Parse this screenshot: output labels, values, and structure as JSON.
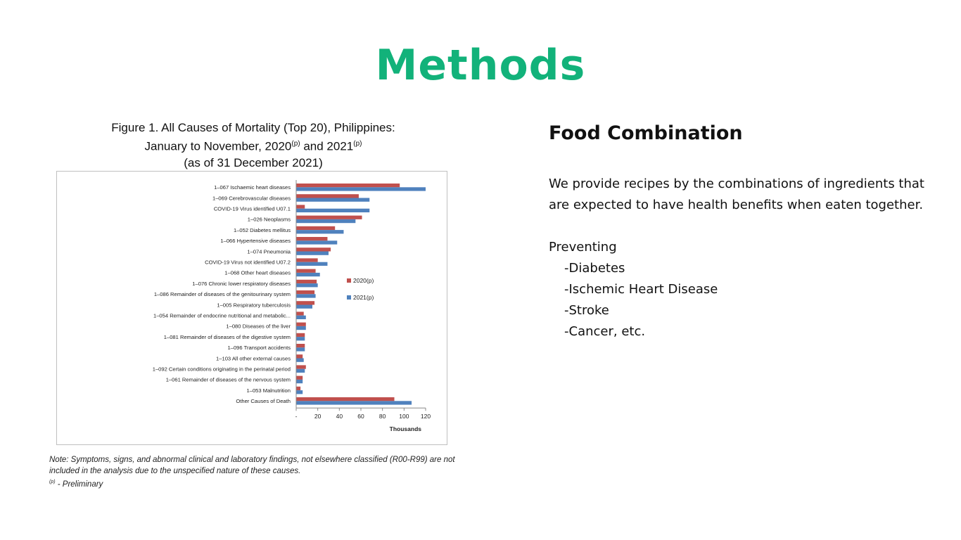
{
  "slide": {
    "title": "Methods",
    "title_color": "#12b27a"
  },
  "figure": {
    "title_line1": "Figure 1.  All Causes of Mortality (Top 20), Philippines:",
    "title_line2_a": "January to November, 2020",
    "title_sup_a": "(p)",
    "title_line2_b": " and 2021",
    "title_sup_b": "(p)",
    "title_line3": "(as of 31 December 2021)",
    "note_line1": "Note: Symptoms, signs, and abnormal clinical and laboratory findings, not elsewhere classified (R00-R99) are not",
    "note_line2": "included in the analysis due to the unspecified nature of these causes.",
    "note_sup": "(p)",
    "note_line3": " - Preliminary"
  },
  "chart_data": {
    "type": "bar",
    "orientation": "horizontal",
    "categories": [
      "1–067 Ischaemic heart diseases",
      "1–069 Cerebrovascular diseases",
      "COVID-19 Virus identified U07.1",
      "1–026 Neoplasms",
      "1–052 Diabetes mellitus",
      "1–066 Hypertensive diseases",
      "1–074 Pneumonia",
      "COVID-19 Virus not identified U07.2",
      "1–068 Other heart diseases",
      "1–076 Chronic lower respiratory diseases",
      "1–086 Remainder of diseases of the genitourinary system",
      "1–005 Respiratory tuberculosis",
      "1–054 Remainder of endocrine nutritional and metabolic...",
      "1–080 Diseases of the liver",
      "1–081 Remainder of diseases of the digestive system",
      "1–096 Transport accidents",
      "1–103 All other external causes",
      "1–092 Certain conditions originating in the perinatal period",
      "1–061 Remainder of diseases of the nervous system",
      "1–053 Malnutrition",
      "Other Causes of Death"
    ],
    "series": [
      {
        "name": "2020(p)",
        "color": "#c0504d",
        "values": [
          96,
          58,
          8,
          61,
          36,
          29,
          32,
          20,
          18,
          19,
          17,
          17,
          7,
          9,
          8,
          8,
          6,
          9,
          6,
          4,
          91
        ]
      },
      {
        "name": "2021(p)",
        "color": "#4f81bd",
        "values": [
          120,
          68,
          68,
          55,
          44,
          38,
          30,
          29,
          22,
          20,
          18,
          15,
          9,
          9,
          8,
          8,
          7,
          8,
          6,
          6,
          107
        ]
      }
    ],
    "x_ticks": [
      "-",
      "20",
      "40",
      "60",
      "80",
      "100",
      "120"
    ],
    "x_tick_values": [
      0,
      20,
      40,
      60,
      80,
      100,
      120
    ],
    "xlim": [
      0,
      120
    ],
    "xlabel": "Thousands",
    "ylabel": "",
    "grid": false,
    "legend_position": "right"
  },
  "food": {
    "heading": "Food Combination",
    "paragraph": "We provide recipes by the combinations of ingredients that are expected to have health benefits when eaten together.",
    "preventing_label": "Preventing",
    "items": [
      "-Diabetes",
      "-Ischemic Heart Disease",
      "-Stroke",
      "-Cancer, etc."
    ]
  }
}
